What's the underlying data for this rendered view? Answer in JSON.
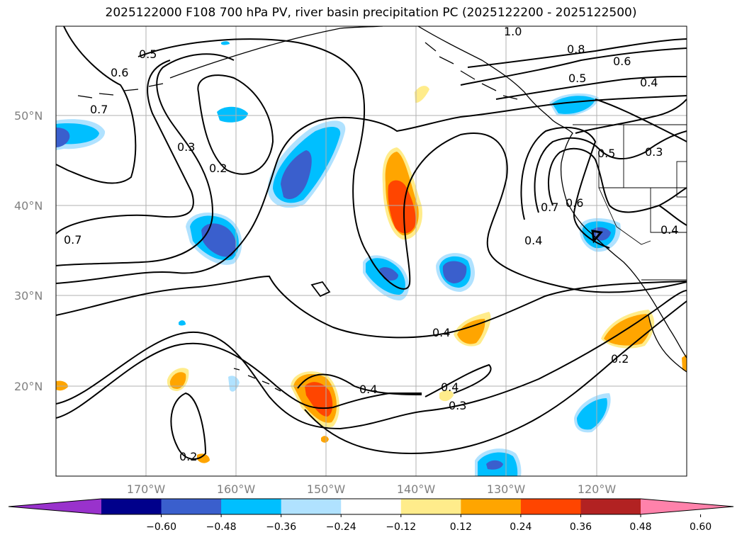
{
  "title": "2025122000 F108 700 hPa PV, river basin precipitation PC (2025122200 - 2025122500)",
  "map": {
    "lat_labels": [
      "50°N",
      "40°N",
      "30°N",
      "20°N"
    ],
    "lon_labels": [
      "170°W",
      "160°W",
      "150°W",
      "140°W",
      "130°W",
      "120°W"
    ],
    "contour_labels": [
      {
        "id": "c-10",
        "text": "1.0"
      },
      {
        "id": "c-08",
        "text": "0.8"
      },
      {
        "id": "c-06a",
        "text": "0.6"
      },
      {
        "id": "c-05a",
        "text": "0.5"
      },
      {
        "id": "c-04a",
        "text": "0.4"
      },
      {
        "id": "c-05b",
        "text": "0.5"
      },
      {
        "id": "c-06b",
        "text": "0.6"
      },
      {
        "id": "c-07a",
        "text": "0.7"
      },
      {
        "id": "c-03a",
        "text": "0.3"
      },
      {
        "id": "c-02a",
        "text": "0.2"
      },
      {
        "id": "c-07b",
        "text": "0.7"
      },
      {
        "id": "c-04b",
        "text": "0.4"
      },
      {
        "id": "c-05c",
        "text": "0.5"
      },
      {
        "id": "c-03b",
        "text": "0.3"
      },
      {
        "id": "c-07c",
        "text": "0.7"
      },
      {
        "id": "c-06c",
        "text": "0.6"
      },
      {
        "id": "c-04c",
        "text": "0.4"
      },
      {
        "id": "c-04d",
        "text": "0.4"
      },
      {
        "id": "c-04e",
        "text": "0.4"
      },
      {
        "id": "c-04f",
        "text": "0.4"
      },
      {
        "id": "c-03c",
        "text": "0.3"
      },
      {
        "id": "c-02b",
        "text": "0.2"
      },
      {
        "id": "c-02c",
        "text": "0.2"
      }
    ]
  },
  "colorbar": {
    "ticks": [
      "−0.60",
      "−0.48",
      "−0.36",
      "−0.24",
      "−0.12",
      "0.12",
      "0.24",
      "0.36",
      "0.48",
      "0.60"
    ],
    "colors": [
      "#9932cc",
      "#00008b",
      "#3a5fcd",
      "#00bfff",
      "#b0e2ff",
      "#ffffff",
      "#ffec8b",
      "#ffa500",
      "#ff4500",
      "#b22222",
      "#ff82ab"
    ]
  }
}
